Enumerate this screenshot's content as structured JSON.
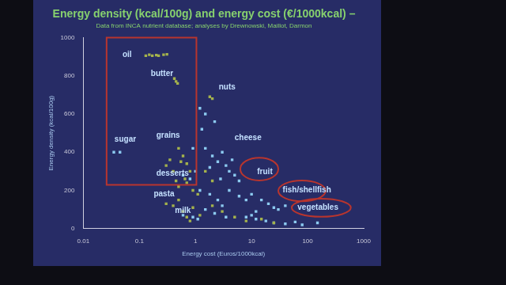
{
  "chart_data": {
    "type": "scatter",
    "title": "Energy density (kcal/100g) and energy cost (€/1000kcal) –",
    "subtitle": "Data from INCA nutrient database; analyses by Drewnowski, Maillot, Darmon",
    "x_label": "Energy cost (Euros/1000kcal)",
    "y_label": "Energy density (kcal/100g)",
    "log": "x",
    "xlim": [
      0.01,
      1000
    ],
    "xticks": [
      0.01,
      0.1,
      1,
      10,
      100,
      1000
    ],
    "ylim": [
      0,
      1000
    ],
    "yticks": [
      0,
      200,
      400,
      600,
      800,
      1000
    ],
    "grid": false,
    "marker": "square",
    "series": [
      {
        "color": "#a4b24c",
        "x": [
          0.13,
          0.15,
          0.17,
          0.2,
          0.22,
          0.27,
          0.31,
          0.42,
          0.45,
          0.48,
          0.3,
          0.35,
          0.4,
          0.5,
          0.55,
          0.6,
          0.7,
          0.8,
          0.45,
          0.65,
          0.3,
          0.4,
          0.5,
          0.6,
          0.7,
          0.9,
          1.2,
          0.8,
          0.5,
          0.7,
          0.9,
          1.1,
          2,
          3,
          5,
          8,
          15,
          25,
          1.5,
          2,
          1.8,
          2
        ],
        "y": [
          905,
          910,
          905,
          908,
          905,
          910,
          912,
          785,
          770,
          760,
          330,
          360,
          300,
          420,
          350,
          380,
          340,
          300,
          250,
          260,
          130,
          120,
          150,
          90,
          60,
          110,
          70,
          40,
          220,
          240,
          200,
          180,
          120,
          90,
          60,
          40,
          50,
          30,
          300,
          250,
          690,
          680
        ]
      },
      {
        "color": "#8ccaf0",
        "x": [
          0.035,
          0.045,
          1.2,
          1.5,
          2.2,
          1.3,
          1.5,
          2,
          2.5,
          3,
          3.5,
          4,
          5,
          2.8,
          1.8,
          6,
          4.5,
          1.2,
          1.8,
          2.5,
          3,
          4,
          6,
          8,
          1.5,
          2.2,
          3.5,
          10,
          15,
          20,
          25,
          30,
          40,
          12,
          8,
          12,
          18,
          25,
          40,
          60,
          80,
          150,
          10,
          0.6,
          0.8,
          1,
          0.9,
          0.6,
          0.9,
          1.1
        ],
        "y": [
          400,
          400,
          630,
          600,
          560,
          520,
          420,
          380,
          350,
          400,
          330,
          300,
          280,
          260,
          320,
          250,
          360,
          200,
          180,
          150,
          120,
          200,
          170,
          150,
          100,
          80,
          60,
          180,
          150,
          130,
          110,
          100,
          120,
          90,
          60,
          50,
          40,
          30,
          25,
          35,
          20,
          30,
          70,
          280,
          260,
          300,
          420,
          70,
          60,
          50
        ]
      }
    ],
    "annotations": [
      {
        "text": "oil",
        "x": 0.05,
        "y": 910
      },
      {
        "text": "butter",
        "x": 0.16,
        "y": 810
      },
      {
        "text": "nuts",
        "x": 2.6,
        "y": 738
      },
      {
        "text": "sugar",
        "x": 0.036,
        "y": 467
      },
      {
        "text": "grains",
        "x": 0.2,
        "y": 486
      },
      {
        "text": "cheese",
        "x": 5,
        "y": 476
      },
      {
        "text": "desserts",
        "x": 0.2,
        "y": 290
      },
      {
        "text": "fruit",
        "x": 12.6,
        "y": 295
      },
      {
        "text": "pasta",
        "x": 0.18,
        "y": 181
      },
      {
        "text": "fish/shellfish",
        "x": 36,
        "y": 200
      },
      {
        "text": "milk",
        "x": 0.43,
        "y": 95
      },
      {
        "text": "vegetables",
        "x": 66,
        "y": 110
      }
    ],
    "highlights": [
      {
        "shape": "rect",
        "x": [
          0.026,
          1.04
        ],
        "y": [
          229,
          1000
        ]
      },
      {
        "shape": "ellipse",
        "x": [
          6.3,
          30
        ],
        "y": [
          252,
          371
        ]
      },
      {
        "shape": "ellipse",
        "x": [
          30,
          209
        ],
        "y": [
          143,
          252
        ]
      },
      {
        "shape": "ellipse",
        "x": [
          52,
          590
        ],
        "y": [
          62,
          157
        ]
      }
    ]
  }
}
